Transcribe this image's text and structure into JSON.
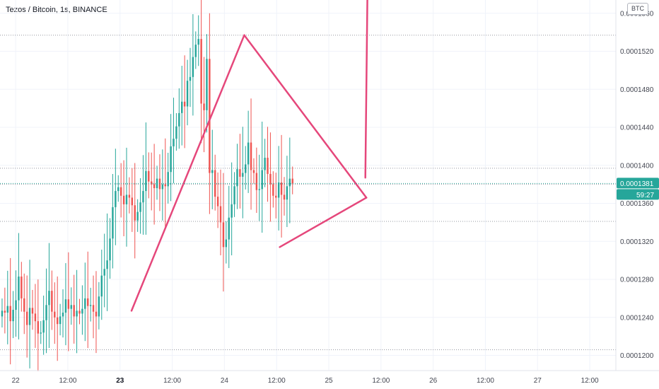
{
  "header": {
    "title": "Tezos / Bitcoin, 1s, BINANCE",
    "currency_badge": "BTC"
  },
  "colors": {
    "up": "#26a69a",
    "down": "#ef5350",
    "drawing": "#e5477b",
    "price_line": "#26a69a",
    "grid": "#f0f3fa",
    "dotted": "#9598a1"
  },
  "chart_data": {
    "type": "candlestick",
    "title": "Tezos / Bitcoin, 1s, BINANCE",
    "x_ticks": [
      {
        "label": "22",
        "t": 0.1,
        "bold": false
      },
      {
        "label": "12:00",
        "t": 0.6,
        "bold": false
      },
      {
        "label": "23",
        "t": 1.1,
        "bold": true
      },
      {
        "label": "12:00",
        "t": 1.6,
        "bold": false
      },
      {
        "label": "24",
        "t": 2.1,
        "bold": false
      },
      {
        "label": "12:00",
        "t": 2.6,
        "bold": false
      },
      {
        "label": "25",
        "t": 3.1,
        "bold": false
      },
      {
        "label": "12:00",
        "t": 3.6,
        "bold": false
      },
      {
        "label": "26",
        "t": 4.1,
        "bold": false
      },
      {
        "label": "12:00",
        "t": 4.6,
        "bold": false
      },
      {
        "label": "27",
        "t": 5.1,
        "bold": false
      },
      {
        "label": "12:00",
        "t": 5.6,
        "bold": false
      }
    ],
    "y_ticks": [
      {
        "label": "0.0001560",
        "v": 0.000156
      },
      {
        "label": "0.0001520",
        "v": 0.000152
      },
      {
        "label": "0.0001480",
        "v": 0.000148
      },
      {
        "label": "0.0001440",
        "v": 0.000144
      },
      {
        "label": "0.0001400",
        "v": 0.00014
      },
      {
        "label": "0.0001360",
        "v": 0.000136
      },
      {
        "label": "0.0001320",
        "v": 0.000132
      },
      {
        "label": "0.0001280",
        "v": 0.000128
      },
      {
        "label": "0.0001240",
        "v": 0.000124
      },
      {
        "label": "0.0001200",
        "v": 0.00012
      }
    ],
    "ylim": [
      0.0001184,
      0.0001574
    ],
    "xlim": [
      -0.05,
      5.85
    ],
    "current_price": {
      "label": "0.0001381",
      "v": 0.0001381
    },
    "countdown": "59:27",
    "horizontal_levels": [
      0.0001537,
      0.0001397,
      0.000138,
      0.0001341,
      0.0001206
    ],
    "candles_t0": -0.03,
    "candles_dt": 0.0265,
    "closes": [
      0.0001247,
      0.0001245,
      0.0001252,
      0.0001236,
      0.0001248,
      0.0001258,
      0.0001283,
      0.000126,
      0.0001246,
      0.0001232,
      0.000125,
      0.0001244,
      0.0001236,
      0.0001223,
      0.0001224,
      0.0001237,
      0.0001253,
      0.0001268,
      0.0001246,
      0.000124,
      0.0001233,
      0.0001241,
      0.0001245,
      0.0001259,
      0.0001249,
      0.0001253,
      0.0001241,
      0.0001247,
      0.0001244,
      0.0001249,
      0.000126,
      0.0001252,
      0.0001253,
      0.0001246,
      0.0001241,
      0.0001262,
      0.0001284,
      0.0001291,
      0.00013,
      0.0001323,
      0.0001356,
      0.0001373,
      0.0001377,
      0.0001368,
      0.0001359,
      0.0001369,
      0.0001366,
      0.0001358,
      0.0001342,
      0.0001351,
      0.0001361,
      0.0001373,
      0.0001394,
      0.0001383,
      0.000138,
      0.0001376,
      0.0001386,
      0.0001375,
      0.000138,
      0.0001378,
      0.0001393,
      0.000142,
      0.0001428,
      0.0001441,
      0.0001455,
      0.0001467,
      0.0001462,
      0.0001489,
      0.0001493,
      0.0001514,
      0.0001527,
      0.0001533,
      0.0001465,
      0.0001458,
      0.0001512,
      0.0001392,
      0.0001395,
      0.0001367,
      0.0001357,
      0.000134,
      0.0001314,
      0.0001322,
      0.0001345,
      0.0001359,
      0.0001378,
      0.0001396,
      0.0001388,
      0.0001392,
      0.0001401,
      0.0001424,
      0.0001395,
      0.0001392,
      0.0001374,
      0.0001375,
      0.0001395,
      0.0001408,
      0.0001391,
      0.000138,
      0.0001368,
      0.0001366,
      0.0001382,
      0.0001369,
      0.0001364,
      0.0001378,
      0.0001386,
      0.0001381
    ]
  }
}
